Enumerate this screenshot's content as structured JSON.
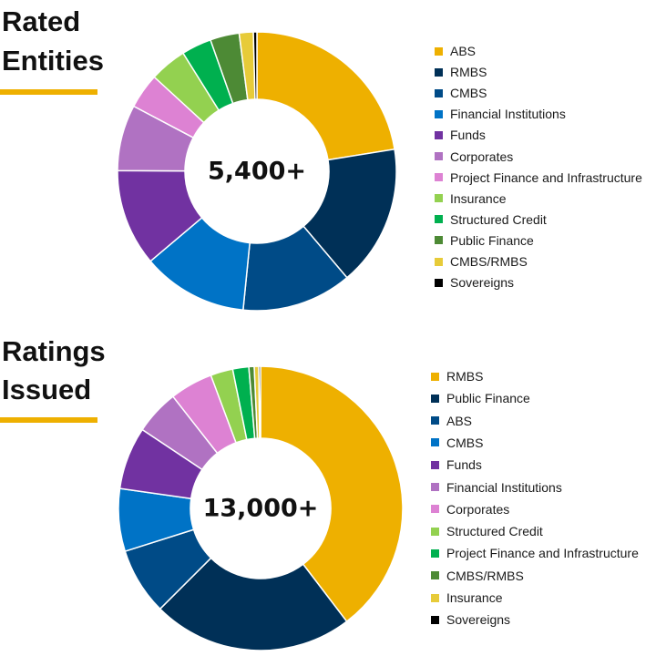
{
  "chart_data": [
    {
      "type": "pie",
      "variant": "donut",
      "title": "Rated Entities",
      "center_label": "5,400+",
      "legend_position": "right",
      "colors": [
        "#eeb000",
        "#003057",
        "#004b87",
        "#0073c6",
        "#7132a1",
        "#b072c2",
        "#dd82d3",
        "#93d150",
        "#00b04f",
        "#4d8a35",
        "#e7cb39",
        "#000000"
      ],
      "slices": [
        {
          "label": "ABS",
          "value": 22.0
        },
        {
          "label": "RMBS",
          "value": 16.0
        },
        {
          "label": "CMBS",
          "value": 12.5
        },
        {
          "label": "Financial Institutions",
          "value": 12.0
        },
        {
          "label": "Funds",
          "value": 11.0
        },
        {
          "label": "Corporates",
          "value": 7.5
        },
        {
          "label": "Project Finance and Infrastructure",
          "value": 4.0
        },
        {
          "label": "Insurance",
          "value": 4.2
        },
        {
          "label": "Structured Credit",
          "value": 3.4
        },
        {
          "label": "Public Finance",
          "value": 3.3
        },
        {
          "label": "CMBS/RMBS",
          "value": 1.6
        },
        {
          "label": "Sovereigns",
          "value": 0.4
        }
      ]
    },
    {
      "type": "pie",
      "variant": "donut",
      "title": "Ratings Issued",
      "center_label": "13,000+",
      "legend_position": "right",
      "colors": [
        "#eeb000",
        "#003057",
        "#004b87",
        "#0073c6",
        "#7132a1",
        "#b072c2",
        "#dd82d3",
        "#93d150",
        "#00b04f",
        "#4d8a35",
        "#e7cb39",
        "#000000"
      ],
      "slices": [
        {
          "label": "RMBS",
          "value": 39.0
        },
        {
          "label": "Public Finance",
          "value": 22.5
        },
        {
          "label": "ABS",
          "value": 7.5
        },
        {
          "label": "CMBS",
          "value": 7.0
        },
        {
          "label": "Funds",
          "value": 7.0
        },
        {
          "label": "Financial Institutions",
          "value": 5.0
        },
        {
          "label": "Corporates",
          "value": 4.8
        },
        {
          "label": "Structured Credit",
          "value": 2.5
        },
        {
          "label": "Project Finance and Infrastructure",
          "value": 1.8
        },
        {
          "label": "CMBS/RMBS",
          "value": 0.6
        },
        {
          "label": "Insurance",
          "value": 0.5
        },
        {
          "label": "Sovereigns",
          "value": 0.2
        }
      ]
    }
  ]
}
